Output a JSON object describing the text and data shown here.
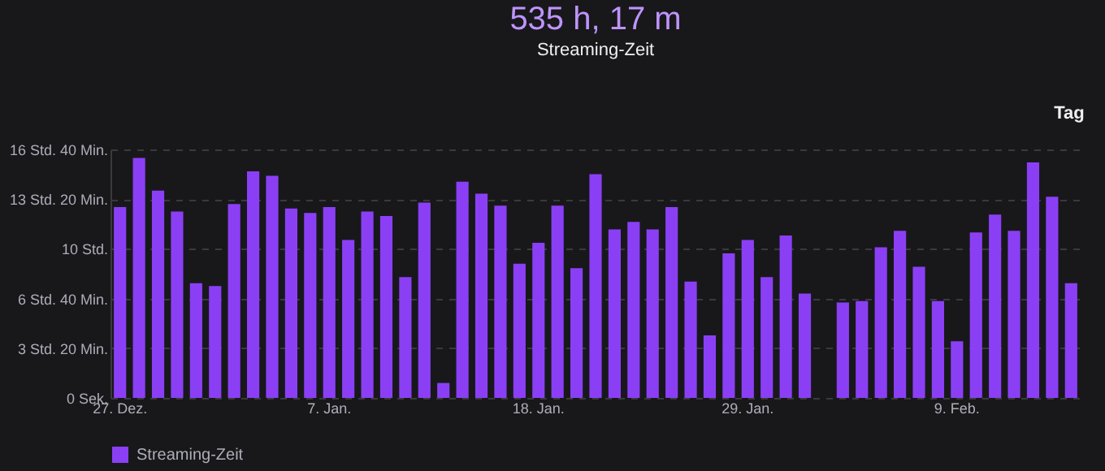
{
  "chart_data": {
    "type": "bar",
    "title": "535 h, 17 m",
    "subtitle": "Streaming-Zeit",
    "categories": [
      "27. Dez.",
      null,
      null,
      null,
      null,
      null,
      null,
      null,
      null,
      null,
      null,
      "7. Jan.",
      null,
      null,
      null,
      null,
      null,
      null,
      null,
      null,
      null,
      null,
      "18. Jan.",
      null,
      null,
      null,
      null,
      null,
      null,
      null,
      null,
      null,
      null,
      "29. Jan.",
      null,
      null,
      null,
      null,
      null,
      null,
      null,
      null,
      null,
      null,
      "9. Feb.",
      null,
      null,
      null,
      null,
      null,
      null
    ],
    "series": [
      {
        "name": "Streaming-Zeit",
        "color": "#8b3ff5",
        "values": [
          12.8,
          16.1,
          13.9,
          12.5,
          7.7,
          7.5,
          13.0,
          15.2,
          14.9,
          12.7,
          12.4,
          12.8,
          10.6,
          12.5,
          12.2,
          8.1,
          13.1,
          1.0,
          14.5,
          13.7,
          12.9,
          9.0,
          10.4,
          12.9,
          8.7,
          15.0,
          11.3,
          11.8,
          11.3,
          12.8,
          7.8,
          4.2,
          9.7,
          10.6,
          8.1,
          10.9,
          7.0,
          null,
          6.4,
          6.5,
          10.1,
          11.2,
          8.8,
          6.5,
          3.8,
          11.1,
          12.3,
          11.2,
          15.8,
          13.5,
          7.7
        ]
      }
    ],
    "ylim": [
      0,
      16.667
    ],
    "yticks": [
      {
        "value": 0,
        "label": "0 Sek."
      },
      {
        "value": 3.333,
        "label": "3 Std. 20 Min."
      },
      {
        "value": 6.667,
        "label": "6 Std. 40 Min."
      },
      {
        "value": 10,
        "label": "10 Std."
      },
      {
        "value": 13.333,
        "label": "13 Std. 20 Min."
      },
      {
        "value": 16.667,
        "label": "16 Std. 40 Min."
      }
    ],
    "grid": "y",
    "legend": "bottom",
    "annotations": [
      "Tag"
    ]
  }
}
